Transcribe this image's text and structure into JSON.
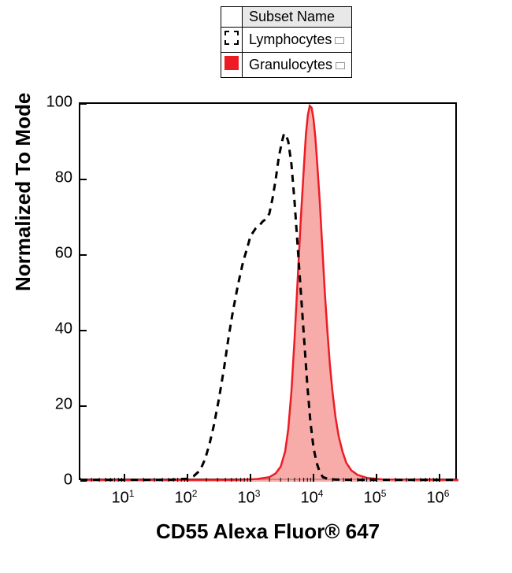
{
  "legend": {
    "header_swatch": "",
    "header_name": "Subset Name",
    "rows": [
      {
        "label": "Lymphocytes",
        "style": "dashed",
        "fill": "#ffffff",
        "stroke": "#000000"
      },
      {
        "label": "Granulocytes",
        "style": "filled",
        "fill": "#ed1c24",
        "stroke": "#ed1c24"
      }
    ]
  },
  "chart": {
    "type": "histogram",
    "plot_bg": "#ffffff",
    "border_color": "#000000",
    "y": {
      "label": "Normalized To Mode",
      "scale": "linear",
      "min": 0,
      "max": 100,
      "ticks": [
        0,
        20,
        40,
        60,
        80,
        100
      ],
      "label_fontsize": 26,
      "tick_fontsize": 20
    },
    "x": {
      "label": "CD55 Alexa Fluor® 647",
      "scale": "log",
      "min_exp": 0.3,
      "max_exp": 6.3,
      "major_ticks_exp": [
        1,
        2,
        3,
        4,
        5,
        6
      ],
      "label_fontsize": 26,
      "tick_fontsize": 20
    },
    "series": [
      {
        "name": "Lymphocytes",
        "draw": "line",
        "stroke": "#000000",
        "stroke_width": 3,
        "dash": "9,7",
        "fill": "none",
        "points_exp_y": [
          [
            0.3,
            0.5
          ],
          [
            1.0,
            0.5
          ],
          [
            1.7,
            0.5
          ],
          [
            2.0,
            0.8
          ],
          [
            2.1,
            1.5
          ],
          [
            2.2,
            3
          ],
          [
            2.28,
            6
          ],
          [
            2.35,
            10
          ],
          [
            2.42,
            15
          ],
          [
            2.5,
            22
          ],
          [
            2.58,
            30
          ],
          [
            2.65,
            38
          ],
          [
            2.72,
            45
          ],
          [
            2.8,
            52
          ],
          [
            2.88,
            58
          ],
          [
            2.95,
            62
          ],
          [
            3.0,
            65
          ],
          [
            3.08,
            67
          ],
          [
            3.15,
            68
          ],
          [
            3.2,
            69
          ],
          [
            3.25,
            69.5
          ],
          [
            3.3,
            71
          ],
          [
            3.35,
            75
          ],
          [
            3.4,
            80
          ],
          [
            3.45,
            86
          ],
          [
            3.5,
            90
          ],
          [
            3.53,
            92
          ],
          [
            3.56,
            92
          ],
          [
            3.6,
            90
          ],
          [
            3.65,
            84
          ],
          [
            3.7,
            74
          ],
          [
            3.75,
            62
          ],
          [
            3.8,
            50
          ],
          [
            3.85,
            38
          ],
          [
            3.9,
            26
          ],
          [
            3.95,
            16
          ],
          [
            4.0,
            9
          ],
          [
            4.05,
            5
          ],
          [
            4.1,
            2.5
          ],
          [
            4.15,
            1.2
          ],
          [
            4.25,
            0.6
          ],
          [
            4.6,
            0.5
          ],
          [
            6.3,
            0.5
          ]
        ]
      },
      {
        "name": "Granulocytes",
        "draw": "area",
        "stroke": "#ed1c24",
        "stroke_width": 2.5,
        "dash": "",
        "fill": "#f69d9a",
        "fill_opacity": 0.85,
        "points_exp_y": [
          [
            0.3,
            0.5
          ],
          [
            2.8,
            0.5
          ],
          [
            3.1,
            0.7
          ],
          [
            3.3,
            1.2
          ],
          [
            3.4,
            2.2
          ],
          [
            3.48,
            4
          ],
          [
            3.55,
            8
          ],
          [
            3.6,
            14
          ],
          [
            3.65,
            24
          ],
          [
            3.7,
            38
          ],
          [
            3.75,
            54
          ],
          [
            3.8,
            70
          ],
          [
            3.85,
            84
          ],
          [
            3.88,
            92
          ],
          [
            3.91,
            97
          ],
          [
            3.94,
            99.5
          ],
          [
            3.97,
            99
          ],
          [
            4.0,
            96
          ],
          [
            4.03,
            91
          ],
          [
            4.06,
            84
          ],
          [
            4.1,
            74
          ],
          [
            4.14,
            62
          ],
          [
            4.18,
            50
          ],
          [
            4.22,
            40
          ],
          [
            4.26,
            31
          ],
          [
            4.3,
            24
          ],
          [
            4.35,
            17
          ],
          [
            4.4,
            12
          ],
          [
            4.46,
            8
          ],
          [
            4.52,
            5
          ],
          [
            4.6,
            3
          ],
          [
            4.7,
            1.8
          ],
          [
            4.85,
            1.0
          ],
          [
            5.1,
            0.6
          ],
          [
            6.3,
            0.5
          ]
        ]
      }
    ]
  }
}
